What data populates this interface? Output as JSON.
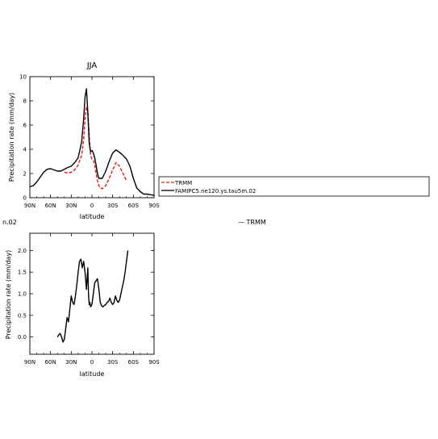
{
  "header_fragments": {
    "left": "n.02",
    "right": "— TRMM"
  },
  "legend": {
    "entries": [
      {
        "label": "TRMM",
        "color": "#e41a1c",
        "dash": "dashed"
      },
      {
        "label": "FAMIPC5.ne120.ys.tau5m.02",
        "color": "#000000",
        "dash": "solid"
      }
    ]
  },
  "chart_data": [
    {
      "type": "line",
      "title": "JJA",
      "xlabel": "latitude",
      "ylabel": "Precipitation rate (mm/day)",
      "xlim": [
        90,
        -90
      ],
      "ylim": [
        0,
        10
      ],
      "xticks": [
        90,
        60,
        30,
        0,
        -30,
        -60,
        -90
      ],
      "xtick_labels": [
        "90N",
        "60N",
        "30N",
        "0",
        "30S",
        "60S",
        "90S"
      ],
      "yticks": [
        0,
        2,
        4,
        6,
        8,
        10
      ],
      "ytick_labels": [
        "0",
        "2",
        "4",
        "6",
        "8",
        "10"
      ],
      "series": [
        {
          "name": "TRMM",
          "color": "#e41a1c",
          "dash": "dashed",
          "x": [
            40,
            35,
            30,
            25,
            20,
            15,
            12,
            10,
            8,
            6,
            4,
            2,
            0,
            -2,
            -4,
            -6,
            -8,
            -10,
            -12,
            -15,
            -20,
            -25,
            -30,
            -35,
            -40,
            -45,
            -50
          ],
          "y": [
            2.1,
            2.05,
            2.1,
            2.3,
            2.7,
            3.5,
            4.8,
            6.5,
            7.5,
            7.1,
            5.2,
            3.5,
            3.2,
            3.1,
            2.7,
            2.0,
            1.4,
            1.0,
            0.8,
            0.75,
            1.0,
            1.6,
            2.3,
            2.9,
            2.6,
            2.0,
            1.4
          ]
        },
        {
          "name": "FAMIPC5.ne120.ys.tau5m.02",
          "color": "#000000",
          "dash": "solid",
          "x": [
            90,
            85,
            80,
            75,
            70,
            65,
            60,
            55,
            50,
            45,
            40,
            35,
            30,
            25,
            20,
            15,
            12,
            10,
            8,
            6,
            4,
            2,
            0,
            -2,
            -4,
            -6,
            -8,
            -10,
            -15,
            -20,
            -25,
            -30,
            -35,
            -40,
            -45,
            -50,
            -55,
            -60,
            -65,
            -70,
            -75,
            -80,
            -85,
            -90
          ],
          "y": [
            0.9,
            1.0,
            1.3,
            1.7,
            2.1,
            2.35,
            2.4,
            2.3,
            2.2,
            2.2,
            2.35,
            2.5,
            2.6,
            2.9,
            3.3,
            4.6,
            6.5,
            8.3,
            9.0,
            7.0,
            4.5,
            3.8,
            3.9,
            3.7,
            3.3,
            2.7,
            2.0,
            1.6,
            1.6,
            2.2,
            3.0,
            3.7,
            3.95,
            3.75,
            3.5,
            3.2,
            2.6,
            1.6,
            0.8,
            0.5,
            0.3,
            0.3,
            0.25,
            0.2
          ]
        }
      ]
    },
    {
      "type": "line",
      "title": "",
      "xlabel": "latitude",
      "ylabel": "Precipitation rate (mm/day)",
      "xlim": [
        90,
        -90
      ],
      "ylim": [
        -0.4,
        2.4
      ],
      "xticks": [
        90,
        60,
        30,
        0,
        -30,
        -60,
        -90
      ],
      "xtick_labels": [
        "90N",
        "60N",
        "30N",
        "0",
        "30S",
        "60S",
        "90S"
      ],
      "yticks": [
        0.0,
        0.5,
        1.0,
        1.5,
        2.0
      ],
      "ytick_labels": [
        "0.0",
        "0.5",
        "1.0",
        "1.5",
        "2.0"
      ],
      "series": [
        {
          "color": "#000000",
          "dash": "solid",
          "x": [
            50,
            48,
            46,
            44,
            42,
            40,
            38,
            36,
            34,
            32,
            30,
            28,
            26,
            24,
            22,
            20,
            18,
            16,
            14,
            12,
            10,
            8,
            7,
            6,
            5,
            4,
            3,
            2,
            0,
            -2,
            -4,
            -6,
            -8,
            -10,
            -12,
            -14,
            -16,
            -18,
            -20,
            -22,
            -24,
            -26,
            -28,
            -30,
            -32,
            -34,
            -36,
            -38,
            -40,
            -42,
            -44,
            -46,
            -48,
            -50,
            -52
          ],
          "y": [
            0.0,
            0.05,
            0.08,
            0.0,
            -0.12,
            -0.05,
            0.2,
            0.45,
            0.35,
            0.65,
            0.95,
            0.8,
            0.75,
            0.95,
            1.2,
            1.5,
            1.75,
            1.8,
            1.6,
            1.75,
            1.5,
            1.1,
            1.35,
            1.6,
            1.0,
            0.75,
            0.8,
            0.7,
            0.75,
            1.0,
            1.25,
            1.3,
            1.35,
            1.1,
            0.8,
            0.72,
            0.7,
            0.73,
            0.75,
            0.8,
            0.82,
            0.9,
            0.8,
            0.75,
            0.8,
            0.95,
            0.85,
            0.8,
            0.85,
            1.0,
            1.15,
            1.3,
            1.5,
            1.75,
            2.0
          ]
        }
      ]
    }
  ]
}
